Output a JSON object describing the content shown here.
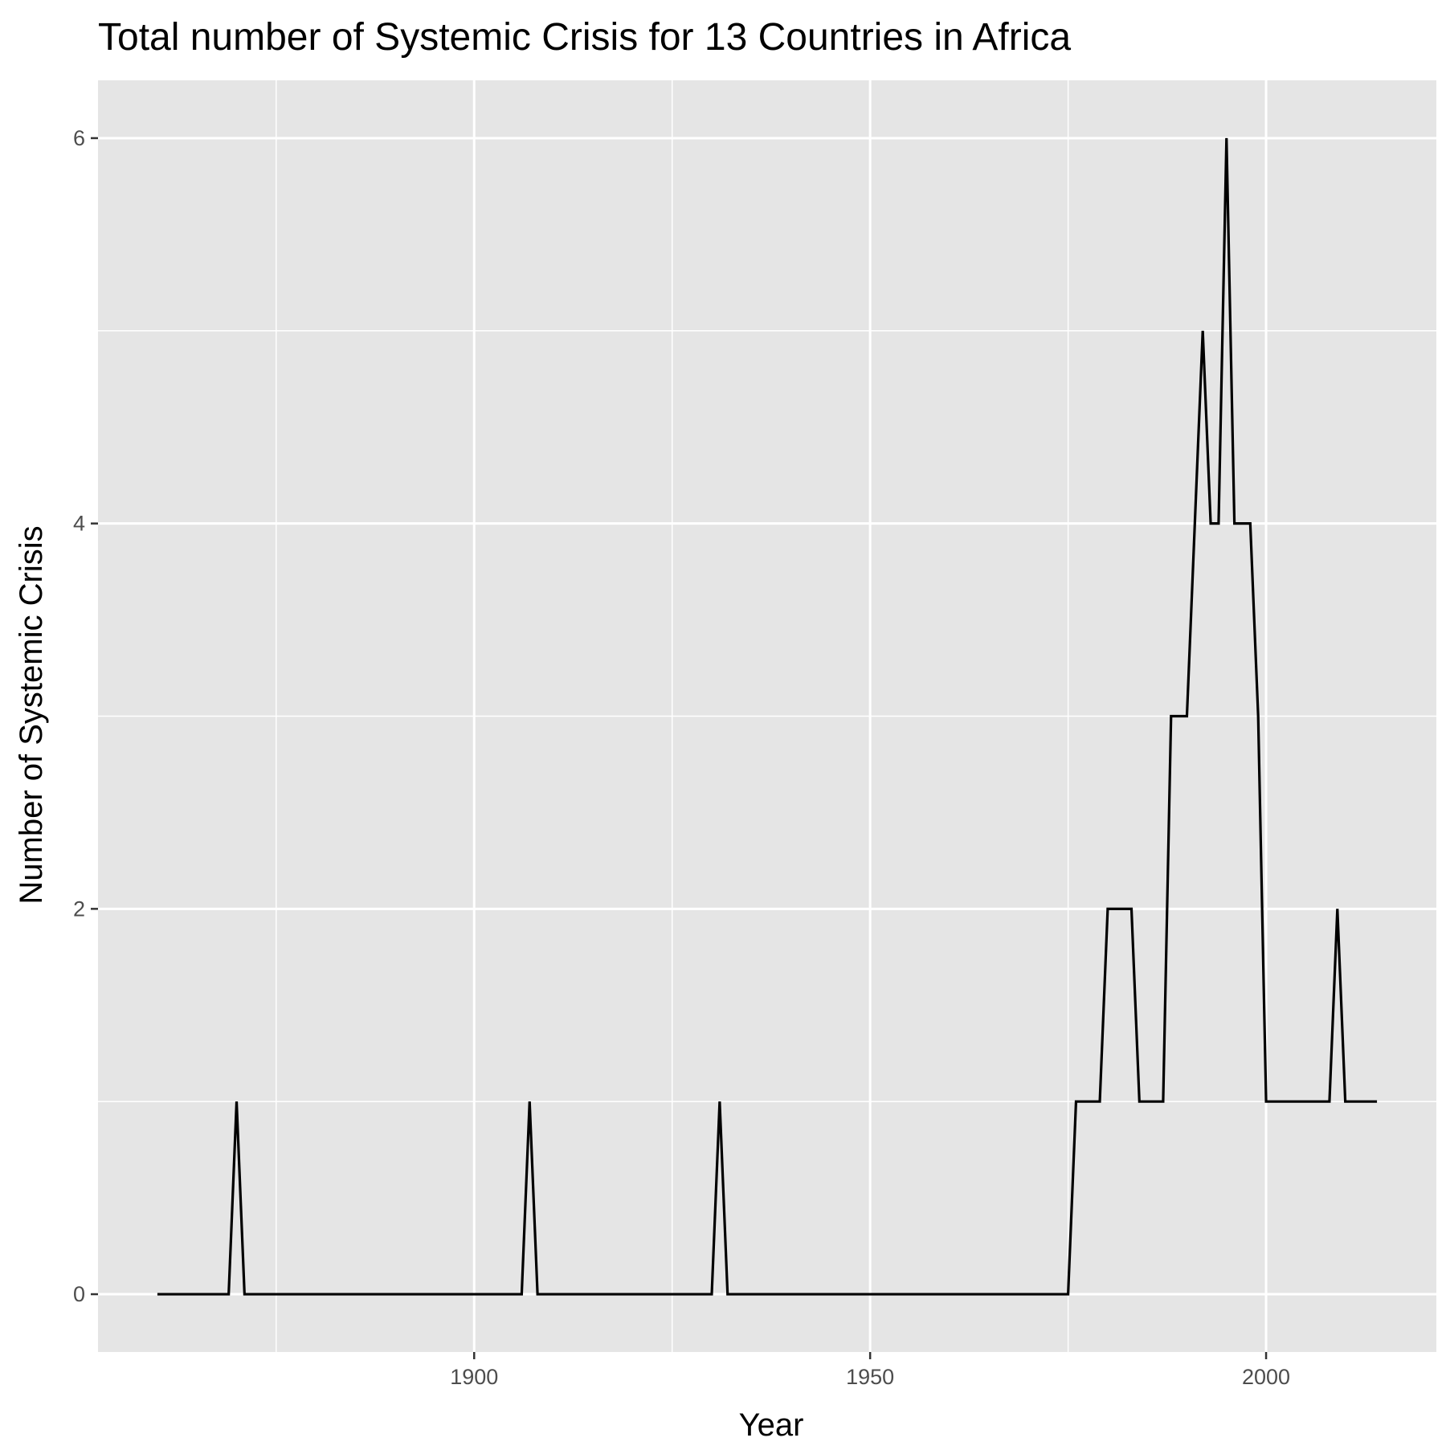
{
  "chart_data": {
    "type": "line",
    "title": "Total number of Systemic Crisis for 13 Countries in Africa",
    "xlabel": "Year",
    "ylabel": "Number of Systemic Crisis",
    "xlim": [
      1852.5,
      2021.5
    ],
    "ylim": [
      -0.3,
      6.3
    ],
    "x_ticks": [
      1900,
      1950,
      2000
    ],
    "y_ticks": [
      0,
      2,
      4,
      6
    ],
    "grid": true,
    "legend": "none",
    "series": [
      {
        "color": "#000000",
        "points": [
          [
            1860,
            0
          ],
          [
            1869,
            0
          ],
          [
            1870,
            1
          ],
          [
            1871,
            0
          ],
          [
            1906,
            0
          ],
          [
            1907,
            1
          ],
          [
            1908,
            0
          ],
          [
            1930,
            0
          ],
          [
            1931,
            1
          ],
          [
            1932,
            0
          ],
          [
            1975,
            0
          ],
          [
            1976,
            1
          ],
          [
            1979,
            1
          ],
          [
            1980,
            2
          ],
          [
            1983,
            2
          ],
          [
            1984,
            1
          ],
          [
            1987,
            1
          ],
          [
            1988,
            3
          ],
          [
            1990,
            3
          ],
          [
            1991,
            4
          ],
          [
            1992,
            5
          ],
          [
            1993,
            4
          ],
          [
            1994,
            4
          ],
          [
            1995,
            6
          ],
          [
            1996,
            4
          ],
          [
            1998,
            4
          ],
          [
            1999,
            3
          ],
          [
            2000,
            1
          ],
          [
            2008,
            1
          ],
          [
            2009,
            2
          ],
          [
            2010,
            1
          ],
          [
            2014,
            1
          ]
        ]
      }
    ]
  },
  "colors": {
    "panel_background": "#e5e5e5",
    "grid_line": "#ffffff",
    "line": "#000000"
  }
}
